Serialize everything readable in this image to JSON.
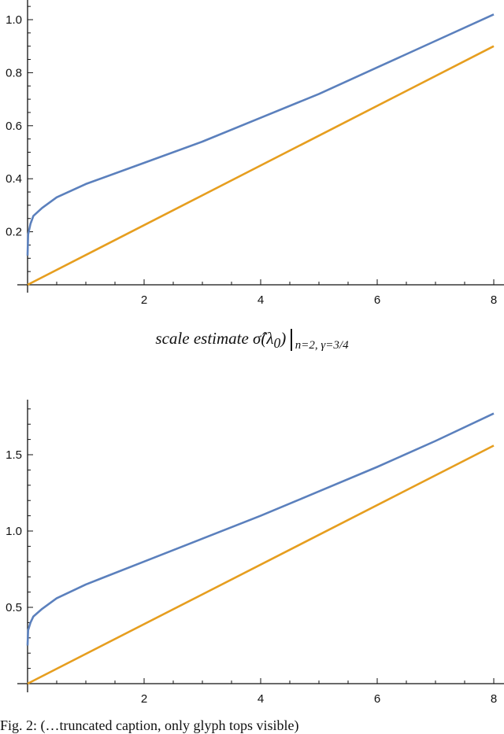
{
  "mid_title": {
    "text": "scale estimate σ̂(λ",
    "lambda_sub": "0",
    "close": ")",
    "condition": "n=2, γ=3/4"
  },
  "caption": {
    "text": "Fig. 2: (…truncated caption, only glyph tops visible)"
  },
  "colors": {
    "blue": "#5b80bd",
    "orange": "#e69e1f",
    "axis": "#111111"
  },
  "chart_data": [
    {
      "type": "line",
      "title": "",
      "xlabel": "",
      "ylabel": "",
      "xlim": [
        0,
        8
      ],
      "ylim": [
        0,
        1.07
      ],
      "x_ticks": [
        "2",
        "4",
        "6",
        "8"
      ],
      "y_ticks": [
        "0.2",
        "0.4",
        "0.6",
        "0.8",
        "1.0"
      ],
      "grid": false,
      "series": [
        {
          "name": "blue curve",
          "color": "#5b80bd",
          "x": [
            0,
            0.01,
            0.05,
            0.1,
            0.25,
            0.5,
            1,
            2,
            3,
            4,
            5,
            6,
            7,
            8
          ],
          "y": [
            0.11,
            0.19,
            0.23,
            0.26,
            0.29,
            0.33,
            0.38,
            0.46,
            0.54,
            0.63,
            0.72,
            0.82,
            0.92,
            1.02
          ]
        },
        {
          "name": "orange line",
          "color": "#e69e1f",
          "x": [
            0,
            8
          ],
          "y": [
            0,
            0.9
          ]
        }
      ]
    },
    {
      "type": "line",
      "title": "scale estimate σ̂(λ0) | n=2, γ=3/4",
      "xlabel": "",
      "ylabel": "",
      "xlim": [
        0,
        8
      ],
      "ylim": [
        0,
        1.87
      ],
      "x_ticks": [
        "2",
        "4",
        "6",
        "8"
      ],
      "y_ticks": [
        "0.5",
        "1.0",
        "1.5"
      ],
      "grid": false,
      "series": [
        {
          "name": "blue curve",
          "color": "#5b80bd",
          "x": [
            0,
            0.01,
            0.05,
            0.1,
            0.25,
            0.5,
            1,
            2,
            3,
            4,
            5,
            6,
            7,
            8
          ],
          "y": [
            0.25,
            0.35,
            0.4,
            0.44,
            0.49,
            0.56,
            0.65,
            0.8,
            0.95,
            1.1,
            1.26,
            1.42,
            1.59,
            1.77
          ]
        },
        {
          "name": "orange line",
          "color": "#e69e1f",
          "x": [
            0,
            8
          ],
          "y": [
            0,
            1.56
          ]
        }
      ]
    }
  ]
}
